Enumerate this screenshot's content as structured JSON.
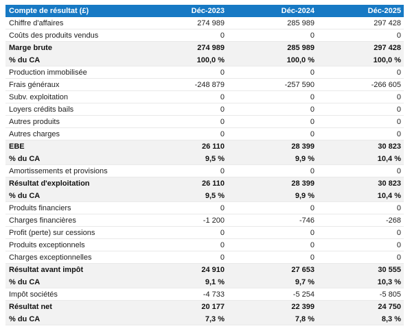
{
  "colors": {
    "header_bg": "#1779c4",
    "header_text": "#ffffff",
    "highlight_row_bg": "#f2f2f2",
    "row_border": "#e9e9e9",
    "body_text": "#1c1c1c"
  },
  "chart_data": {
    "type": "table",
    "title": "Compte de résultat (£)",
    "columns": [
      "Déc-2023",
      "Déc-2024",
      "Déc-2025"
    ],
    "rows": [
      {
        "label": "Chiffre d'affaires",
        "values": [
          "274 989",
          "285 989",
          "297 428"
        ],
        "emphasis": false
      },
      {
        "label": "Coûts des produits vendus",
        "values": [
          "0",
          "0",
          "0"
        ],
        "emphasis": false
      },
      {
        "label": "Marge brute",
        "values": [
          "274 989",
          "285 989",
          "297 428"
        ],
        "emphasis": true
      },
      {
        "label": "% du CA",
        "values": [
          "100,0 %",
          "100,0 %",
          "100,0 %"
        ],
        "emphasis": true
      },
      {
        "label": "Production immobilisée",
        "values": [
          "0",
          "0",
          "0"
        ],
        "emphasis": false
      },
      {
        "label": "Frais généraux",
        "values": [
          "-248 879",
          "-257 590",
          "-266 605"
        ],
        "emphasis": false
      },
      {
        "label": "Subv. exploitation",
        "values": [
          "0",
          "0",
          "0"
        ],
        "emphasis": false
      },
      {
        "label": "Loyers crédits bails",
        "values": [
          "0",
          "0",
          "0"
        ],
        "emphasis": false
      },
      {
        "label": "Autres produits",
        "values": [
          "0",
          "0",
          "0"
        ],
        "emphasis": false
      },
      {
        "label": "Autres charges",
        "values": [
          "0",
          "0",
          "0"
        ],
        "emphasis": false
      },
      {
        "label": "EBE",
        "values": [
          "26 110",
          "28 399",
          "30 823"
        ],
        "emphasis": true
      },
      {
        "label": "% du CA",
        "values": [
          "9,5 %",
          "9,9 %",
          "10,4 %"
        ],
        "emphasis": true
      },
      {
        "label": "Amortissements et provisions",
        "values": [
          "0",
          "0",
          "0"
        ],
        "emphasis": false
      },
      {
        "label": "Résultat d'exploitation",
        "values": [
          "26 110",
          "28 399",
          "30 823"
        ],
        "emphasis": true
      },
      {
        "label": "% du CA",
        "values": [
          "9,5 %",
          "9,9 %",
          "10,4 %"
        ],
        "emphasis": true
      },
      {
        "label": "Produits financiers",
        "values": [
          "0",
          "0",
          "0"
        ],
        "emphasis": false
      },
      {
        "label": "Charges financières",
        "values": [
          "-1 200",
          "-746",
          "-268"
        ],
        "emphasis": false
      },
      {
        "label": "Profit (perte) sur cessions",
        "values": [
          "0",
          "0",
          "0"
        ],
        "emphasis": false
      },
      {
        "label": "Produits exceptionnels",
        "values": [
          "0",
          "0",
          "0"
        ],
        "emphasis": false
      },
      {
        "label": "Charges exceptionnelles",
        "values": [
          "0",
          "0",
          "0"
        ],
        "emphasis": false
      },
      {
        "label": "Résultat avant impôt",
        "values": [
          "24 910",
          "27 653",
          "30 555"
        ],
        "emphasis": true
      },
      {
        "label": "% du CA",
        "values": [
          "9,1 %",
          "9,7 %",
          "10,3 %"
        ],
        "emphasis": true
      },
      {
        "label": "Impôt sociétés",
        "values": [
          "-4 733",
          "-5 254",
          "-5 805"
        ],
        "emphasis": false
      },
      {
        "label": "Résultat net",
        "values": [
          "20 177",
          "22 399",
          "24 750"
        ],
        "emphasis": true
      },
      {
        "label": "% du CA",
        "values": [
          "7,3 %",
          "7,8 %",
          "8,3 %"
        ],
        "emphasis": true
      }
    ]
  }
}
